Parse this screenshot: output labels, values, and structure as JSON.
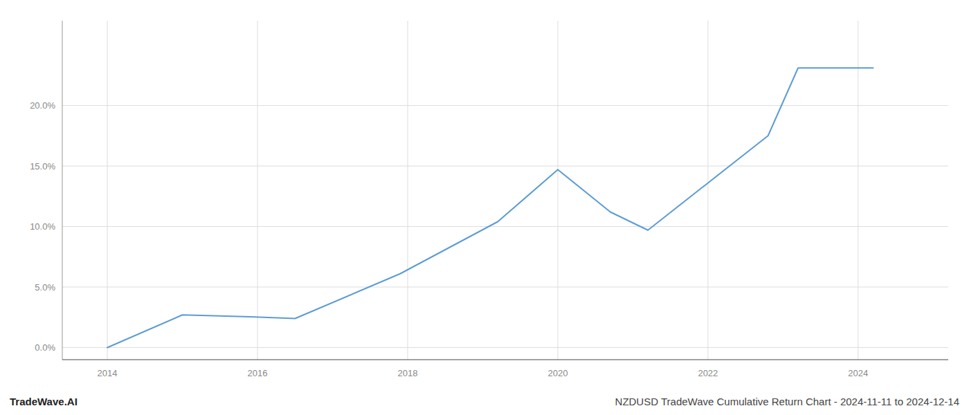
{
  "chart_data": {
    "type": "line",
    "title": "NZDUSD TradeWave Cumulative Return Chart - 2024-11-11 to 2024-12-14",
    "annotations": [
      "TradeWave.AI"
    ],
    "x": [
      2014.0,
      2015.0,
      2015.9,
      2016.5,
      2017.9,
      2019.2,
      2020.0,
      2020.7,
      2021.2,
      2022.8,
      2023.2,
      2024.2
    ],
    "values": [
      0.0,
      2.7,
      2.55,
      2.4,
      6.1,
      10.4,
      14.7,
      11.2,
      9.7,
      17.5,
      23.1,
      23.1
    ],
    "color": "#5b9bd5",
    "xlim": [
      2013.4,
      2025.2
    ],
    "ylim": [
      -1.0,
      27.0
    ],
    "xticks": [
      2014,
      2016,
      2018,
      2020,
      2022,
      2024
    ],
    "yticks": [
      {
        "value": 0.0,
        "label": "0.0%"
      },
      {
        "value": 5.0,
        "label": "5.0%"
      },
      {
        "value": 10.0,
        "label": "10.0%"
      },
      {
        "value": 15.0,
        "label": "15.0%"
      },
      {
        "value": 20.0,
        "label": "20.0%"
      }
    ],
    "grid": true
  }
}
